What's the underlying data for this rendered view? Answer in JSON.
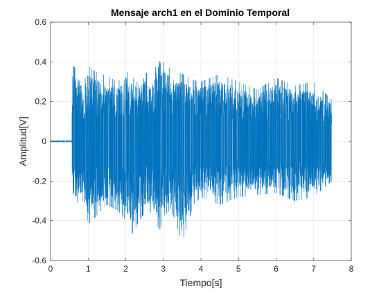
{
  "chart_data": {
    "type": "line",
    "title": "Mensaje arch1 en el Dominio Temporal",
    "xlabel": "Tiempo[s]",
    "ylabel": "Amplitud[V]",
    "xlim": [
      0,
      8
    ],
    "ylim": [
      -0.6,
      0.6
    ],
    "xticks": [
      0,
      1,
      2,
      3,
      4,
      5,
      6,
      7,
      8
    ],
    "yticks": [
      -0.6,
      -0.4,
      -0.2,
      0,
      0.2,
      0.4,
      0.6
    ],
    "xtick_labels": [
      "0",
      "1",
      "2",
      "3",
      "4",
      "5",
      "6",
      "7",
      "8"
    ],
    "ytick_labels": [
      "-0.6",
      "-0.4",
      "-0.2",
      "0",
      "0.2",
      "0.4",
      "0.6"
    ],
    "grid": true,
    "series_color": "#0072bd",
    "signal": {
      "start_time": 0.0,
      "onset_time": 0.57,
      "end_time": 7.48,
      "pre_onset_amplitude": 0.005,
      "envelope": {
        "t": [
          0.57,
          0.6,
          0.7,
          0.9,
          1.0,
          1.2,
          1.5,
          1.8,
          2.0,
          2.2,
          2.3,
          2.5,
          2.7,
          2.9,
          3.0,
          3.2,
          3.5,
          3.8,
          4.0,
          4.5,
          5.0,
          5.5,
          6.0,
          6.5,
          7.0,
          7.48
        ],
        "upper": [
          0.22,
          0.38,
          0.36,
          0.3,
          0.38,
          0.35,
          0.33,
          0.3,
          0.36,
          0.32,
          0.3,
          0.36,
          0.3,
          0.47,
          0.4,
          0.36,
          0.34,
          0.31,
          0.3,
          0.34,
          0.3,
          0.26,
          0.32,
          0.28,
          0.3,
          0.21
        ],
        "lower": [
          -0.2,
          -0.32,
          -0.31,
          -0.3,
          -0.42,
          -0.38,
          -0.32,
          -0.35,
          -0.4,
          -0.47,
          -0.42,
          -0.36,
          -0.36,
          -0.45,
          -0.38,
          -0.34,
          -0.51,
          -0.32,
          -0.28,
          -0.32,
          -0.28,
          -0.27,
          -0.26,
          -0.3,
          -0.28,
          -0.2
        ]
      }
    }
  }
}
